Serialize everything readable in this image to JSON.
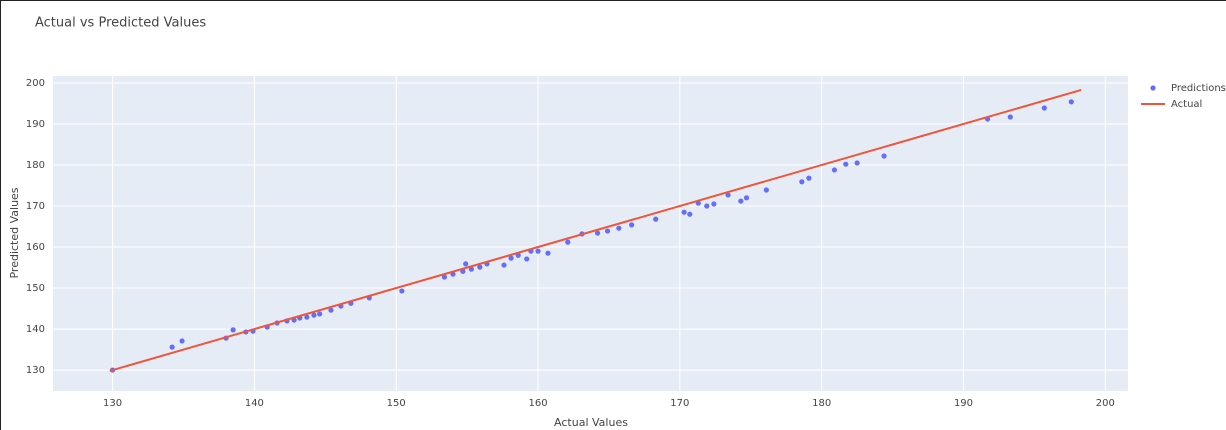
{
  "chart_data": {
    "type": "scatter",
    "title": "Actual vs Predicted Values",
    "x_label": "Actual Values",
    "y_label": "Predicted Values",
    "xlim": [
      125.8,
      201.6
    ],
    "ylim": [
      124.9,
      201.7
    ],
    "xticks": [
      130,
      140,
      150,
      160,
      170,
      180,
      190,
      200
    ],
    "yticks": [
      130,
      140,
      150,
      160,
      170,
      180,
      190,
      200
    ],
    "grid": true,
    "legend": "outside-right",
    "series": [
      {
        "name": "Predictions",
        "mode": "markers",
        "color": "#636efa",
        "x": [
          130,
          134.2,
          134.9,
          138,
          138.5,
          139.4,
          139.9,
          140.9,
          141.6,
          142.3,
          142.8,
          143.2,
          143.7,
          144.2,
          144.6,
          145.4,
          146.1,
          146.8,
          148.1,
          150.4,
          153.4,
          154,
          154.7,
          154.9,
          155.3,
          155.9,
          156.4,
          157.6,
          158.1,
          158.6,
          159.2,
          159.5,
          160,
          160.7,
          162.1,
          163.1,
          164.2,
          164.9,
          165.7,
          166.6,
          168.3,
          170.3,
          170.7,
          171.3,
          171.9,
          172.4,
          173.4,
          174.3,
          174.7,
          176.1,
          178.6,
          179.1,
          180.9,
          181.7,
          182.5,
          184.4,
          191.7,
          193.3,
          195.7,
          197.6
        ],
        "values": [
          130,
          135.6,
          137.1,
          137.8,
          139.8,
          139.3,
          139.5,
          140.5,
          141.5,
          142,
          142.2,
          142.7,
          142.9,
          143.4,
          143.7,
          144.6,
          145.6,
          146.3,
          147.6,
          149.3,
          152.7,
          153.4,
          154.1,
          155.9,
          154.6,
          155.1,
          155.9,
          155.6,
          157.3,
          158,
          157.1,
          159,
          159,
          158.5,
          161.2,
          163.2,
          163.4,
          163.9,
          164.6,
          165.4,
          166.8,
          168.5,
          168,
          170.7,
          170,
          170.5,
          172.7,
          171.2,
          172,
          173.9,
          175.9,
          176.8,
          178.8,
          180.2,
          180.5,
          182.2,
          191.2,
          191.7,
          193.9,
          195.4
        ]
      },
      {
        "name": "Actual",
        "mode": "lines",
        "color": "#ef553b",
        "x": [
          129.8,
          198.3
        ],
        "values": [
          129.8,
          198.3
        ]
      }
    ]
  }
}
